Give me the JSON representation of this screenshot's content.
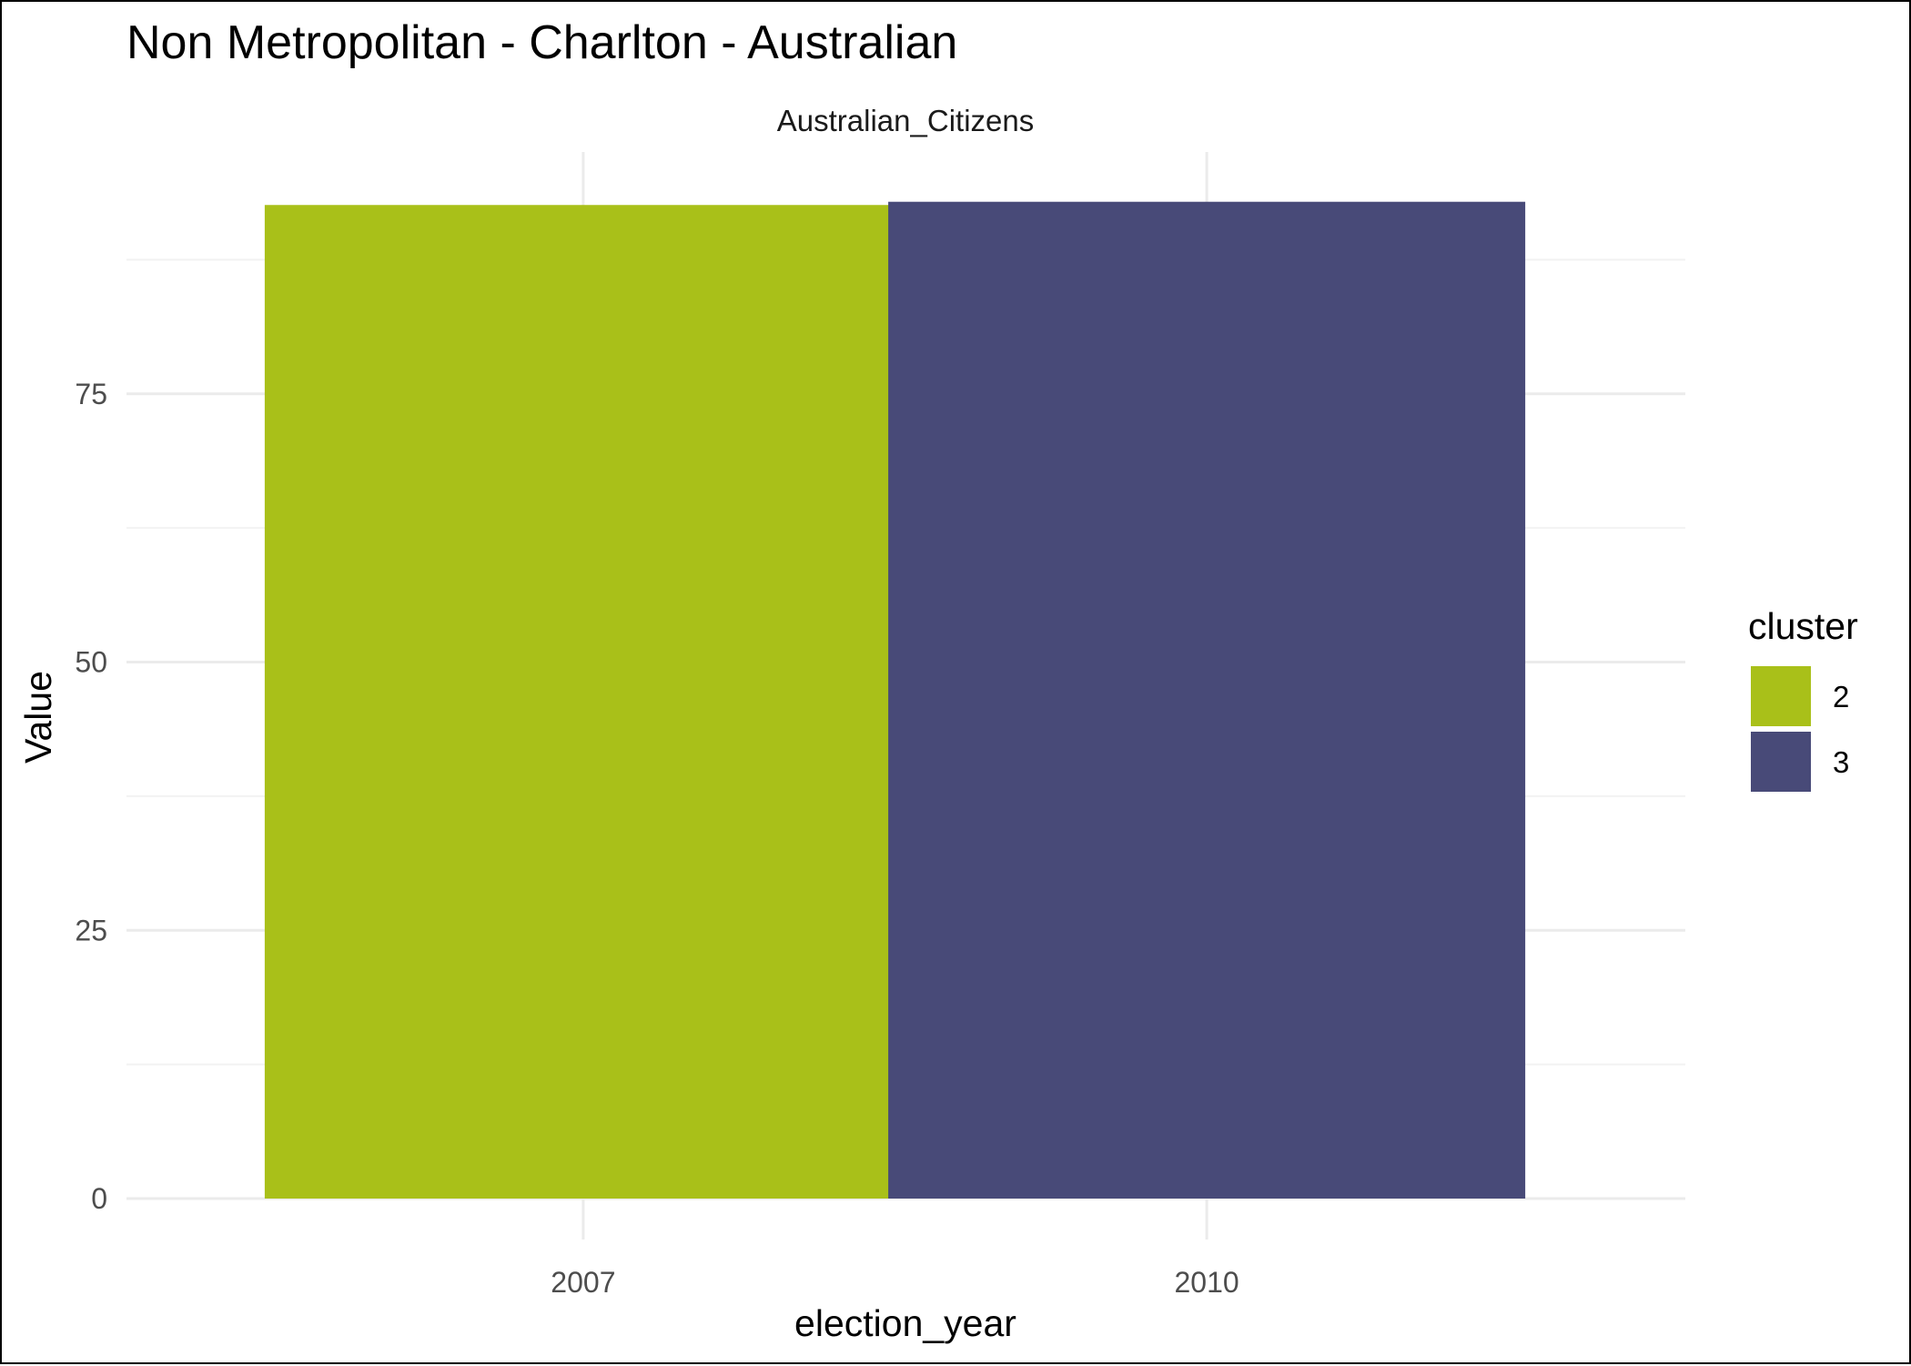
{
  "chart_data": {
    "type": "bar",
    "title": "Non Metropolitan - Charlton - Australian",
    "facet_label": "Australian_Citizens",
    "xlabel": "election_year",
    "ylabel": "Value",
    "categories": [
      "2007",
      "2010"
    ],
    "values": [
      92.6,
      92.9
    ],
    "fill_colors": [
      "#a9c019",
      "#484a78"
    ],
    "bar_clusters": [
      "2",
      "3"
    ],
    "ylim": [
      0,
      100
    ],
    "y_ticks": [
      0,
      25,
      50,
      75
    ],
    "grid": true,
    "legend": {
      "title": "cluster",
      "placement": "right",
      "items": [
        {
          "label": "2",
          "color": "#a9c019"
        },
        {
          "label": "3",
          "color": "#484a78"
        }
      ]
    }
  }
}
